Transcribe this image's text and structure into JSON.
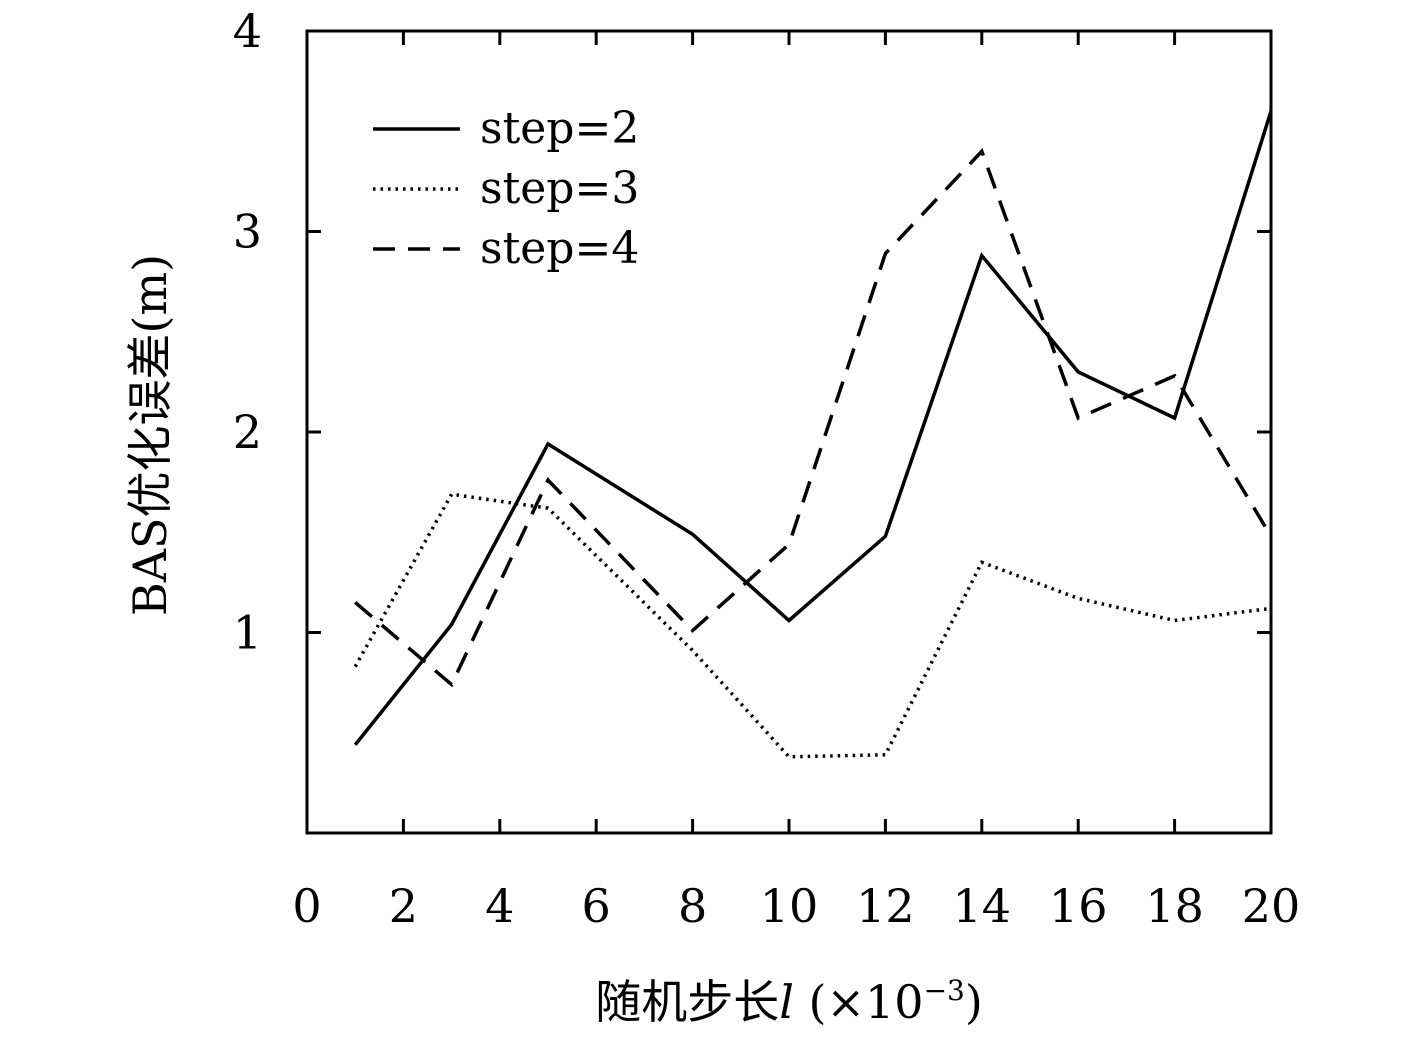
{
  "chart_data": {
    "type": "line",
    "xlabel": {
      "prefix": "随机步长",
      "var": "l",
      "unit_open": " (×10",
      "unit_exp": "−3",
      "unit_close": ")"
    },
    "ylabel": "BAS优化误差(m)",
    "xlim": [
      0,
      20
    ],
    "ylim": [
      0,
      4
    ],
    "x_ticks": [
      0,
      2,
      4,
      6,
      8,
      10,
      12,
      14,
      16,
      18,
      20
    ],
    "y_ticks": [
      1,
      2,
      3,
      4
    ],
    "grid": false,
    "legend_position": "top-left",
    "series": [
      {
        "name": "step=2",
        "style": "solid",
        "x": [
          1,
          3,
          5,
          8,
          10,
          12,
          14,
          16,
          18,
          20
        ],
        "y": [
          0.44,
          1.04,
          1.94,
          1.49,
          1.06,
          1.48,
          2.88,
          2.3,
          2.07,
          3.6
        ]
      },
      {
        "name": "step=3",
        "style": "dotted",
        "x": [
          1,
          3,
          5,
          8,
          10,
          12,
          14,
          16,
          18,
          20
        ],
        "y": [
          0.83,
          1.69,
          1.62,
          0.91,
          0.38,
          0.39,
          1.35,
          1.17,
          1.06,
          1.12
        ]
      },
      {
        "name": "step=4",
        "style": "dashed",
        "x": [
          1,
          3,
          5,
          8,
          10,
          12,
          14,
          16,
          18,
          20
        ],
        "y": [
          1.15,
          0.74,
          1.76,
          1.01,
          1.44,
          2.89,
          3.4,
          2.07,
          2.28,
          1.48
        ]
      }
    ]
  }
}
